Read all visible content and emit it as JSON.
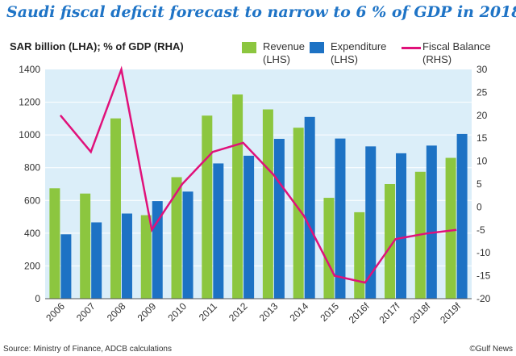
{
  "title": "Saudi fiscal deficit forecast to narrow to 6 % of GDP in 2018",
  "units_label": "SAR billion (LHA); % of GDP (RHA)",
  "source": "Source: Ministry of Finance, ADCB calculations",
  "credit": "©Gulf News",
  "colors": {
    "revenue": "#8cc63f",
    "expenditure": "#1d72c4",
    "fiscal_balance": "#e0117a",
    "plot_bg": "#dbeef9",
    "title": "#1f74c6"
  },
  "chart_data": {
    "type": "bar",
    "categories": [
      "2006",
      "2007",
      "2008",
      "2009",
      "2010",
      "2011",
      "2012",
      "2013",
      "2014",
      "2015",
      "2016f",
      "2017f",
      "2018f",
      "2019f"
    ],
    "series": [
      {
        "name": "Revenue\n(LHS)",
        "type": "bar",
        "axis": "left",
        "values": [
          674,
          642,
          1101,
          510,
          742,
          1118,
          1247,
          1156,
          1044,
          616,
          528,
          700,
          775,
          860
        ]
      },
      {
        "name": "Expenditure\n(LHS)",
        "type": "bar",
        "axis": "left",
        "values": [
          393,
          466,
          520,
          596,
          654,
          826,
          873,
          976,
          1110,
          978,
          930,
          888,
          935,
          1006
        ]
      },
      {
        "name": "Fiscal Balance\n(RHS)",
        "type": "line",
        "axis": "right",
        "values": [
          20,
          12,
          30,
          -5,
          5,
          12,
          14,
          7,
          -2,
          -15,
          -16.5,
          -7,
          -5.8,
          -5
        ]
      }
    ],
    "ylim_left": [
      0,
      1400
    ],
    "yticks_left": [
      0,
      200,
      400,
      600,
      800,
      1000,
      1200,
      1400
    ],
    "ylim_right": [
      -20,
      30
    ],
    "yticks_right": [
      -20,
      -15,
      -10,
      -5,
      0,
      5,
      10,
      15,
      20,
      25,
      30
    ],
    "grid": "horizontal, white",
    "legend_position": "top-right"
  }
}
